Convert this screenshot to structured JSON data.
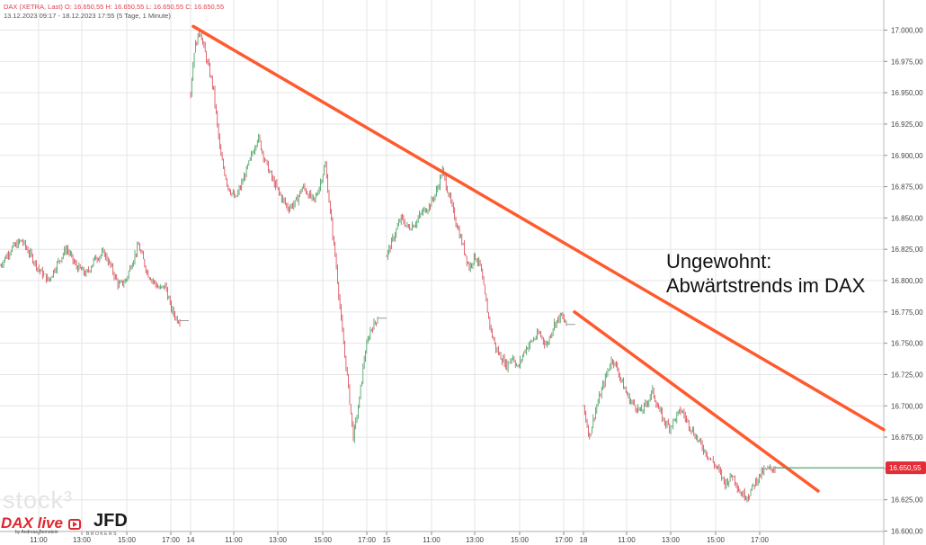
{
  "header": {
    "line1": "DAX (XETRA, Last)  O: 16.650,55  H: 16.650,55  L: 16.650,55  C: 16.650,55",
    "line2": "13.12.2023 09:17 - 18.12.2023 17:55   (5 Tage, 1 Minute)"
  },
  "annotation": {
    "line1": "Ungewohnt:",
    "line2": "Abwärtstrends im DAX"
  },
  "logos": {
    "stock": "stock³",
    "dax_live": "DAX live",
    "dax_live_sub": "by Andreas Bernstein",
    "jfd": "JFD",
    "jfd_sub": "BROKERS"
  },
  "chart_data": {
    "type": "line",
    "title": "DAX (XETRA, Last)",
    "ylim": [
      16600,
      17020
    ],
    "y_ticks": [
      "17.000,00",
      "16.975,00",
      "16.950,00",
      "16.925,00",
      "16.900,00",
      "16.875,00",
      "16.850,00",
      "16.825,00",
      "16.800,00",
      "16.775,00",
      "16.750,00",
      "16.725,00",
      "16.700,00",
      "16.675,00",
      "16.650,00",
      "16.625,00",
      "16.600,00"
    ],
    "last_price": "16.650,55",
    "x_ticks": [
      "11:00",
      "13:00",
      "15:00",
      "17:00",
      "14",
      "11:00",
      "13:00",
      "15:00",
      "17:00",
      "15",
      "11:00",
      "13:00",
      "15:00",
      "17:00",
      "18",
      "11:00",
      "13:00",
      "15:00",
      "17:00"
    ],
    "sessions": [
      {
        "day": "13.12.2023",
        "points": [
          [
            0,
            16812
          ],
          [
            0.06,
            16825
          ],
          [
            0.12,
            16832
          ],
          [
            0.18,
            16818
          ],
          [
            0.22,
            16808
          ],
          [
            0.27,
            16800
          ],
          [
            0.32,
            16814
          ],
          [
            0.37,
            16826
          ],
          [
            0.42,
            16812
          ],
          [
            0.48,
            16805
          ],
          [
            0.53,
            16818
          ],
          [
            0.58,
            16822
          ],
          [
            0.62,
            16810
          ],
          [
            0.66,
            16796
          ],
          [
            0.7,
            16800
          ],
          [
            0.73,
            16813
          ],
          [
            0.77,
            16828
          ],
          [
            0.82,
            16806
          ],
          [
            0.86,
            16798
          ],
          [
            0.89,
            16793
          ],
          [
            0.92,
            16796
          ],
          [
            0.95,
            16778
          ],
          [
            0.98,
            16770
          ],
          [
            1,
            16768
          ]
        ]
      },
      {
        "day": "14.12.2023",
        "points": [
          [
            0,
            16950
          ],
          [
            0.02,
            16985
          ],
          [
            0.05,
            17000
          ],
          [
            0.08,
            16980
          ],
          [
            0.12,
            16955
          ],
          [
            0.16,
            16900
          ],
          [
            0.2,
            16875
          ],
          [
            0.24,
            16865
          ],
          [
            0.28,
            16880
          ],
          [
            0.32,
            16897
          ],
          [
            0.36,
            16915
          ],
          [
            0.4,
            16895
          ],
          [
            0.44,
            16880
          ],
          [
            0.48,
            16868
          ],
          [
            0.52,
            16858
          ],
          [
            0.56,
            16862
          ],
          [
            0.6,
            16875
          ],
          [
            0.63,
            16869
          ],
          [
            0.66,
            16863
          ],
          [
            0.69,
            16876
          ],
          [
            0.72,
            16893
          ],
          [
            0.75,
            16850
          ],
          [
            0.78,
            16810
          ],
          [
            0.81,
            16760
          ],
          [
            0.84,
            16720
          ],
          [
            0.87,
            16675
          ],
          [
            0.9,
            16702
          ],
          [
            0.93,
            16740
          ],
          [
            0.96,
            16760
          ],
          [
            1,
            16770
          ]
        ]
      },
      {
        "day": "15.12.2023",
        "points": [
          [
            0,
            16820
          ],
          [
            0.04,
            16835
          ],
          [
            0.08,
            16850
          ],
          [
            0.12,
            16842
          ],
          [
            0.16,
            16846
          ],
          [
            0.2,
            16855
          ],
          [
            0.24,
            16860
          ],
          [
            0.28,
            16872
          ],
          [
            0.31,
            16888
          ],
          [
            0.34,
            16872
          ],
          [
            0.37,
            16855
          ],
          [
            0.4,
            16840
          ],
          [
            0.43,
            16825
          ],
          [
            0.46,
            16810
          ],
          [
            0.49,
            16820
          ],
          [
            0.52,
            16812
          ],
          [
            0.55,
            16785
          ],
          [
            0.58,
            16760
          ],
          [
            0.61,
            16745
          ],
          [
            0.64,
            16738
          ],
          [
            0.67,
            16732
          ],
          [
            0.7,
            16740
          ],
          [
            0.73,
            16730
          ],
          [
            0.77,
            16745
          ],
          [
            0.81,
            16752
          ],
          [
            0.85,
            16758
          ],
          [
            0.89,
            16748
          ],
          [
            0.93,
            16765
          ],
          [
            0.97,
            16772
          ],
          [
            1,
            16765
          ]
        ]
      },
      {
        "day": "18.12.2023",
        "points": [
          [
            0,
            16700
          ],
          [
            0.03,
            16675
          ],
          [
            0.06,
            16695
          ],
          [
            0.09,
            16710
          ],
          [
            0.12,
            16725
          ],
          [
            0.15,
            16738
          ],
          [
            0.18,
            16728
          ],
          [
            0.21,
            16715
          ],
          [
            0.24,
            16705
          ],
          [
            0.27,
            16700
          ],
          [
            0.3,
            16695
          ],
          [
            0.33,
            16702
          ],
          [
            0.36,
            16712
          ],
          [
            0.39,
            16698
          ],
          [
            0.42,
            16688
          ],
          [
            0.45,
            16683
          ],
          [
            0.48,
            16690
          ],
          [
            0.51,
            16697
          ],
          [
            0.54,
            16688
          ],
          [
            0.57,
            16680
          ],
          [
            0.6,
            16672
          ],
          [
            0.63,
            16665
          ],
          [
            0.66,
            16658
          ],
          [
            0.7,
            16650
          ],
          [
            0.74,
            16638
          ],
          [
            0.78,
            16645
          ],
          [
            0.82,
            16630
          ],
          [
            0.86,
            16628
          ],
          [
            0.9,
            16640
          ],
          [
            0.94,
            16648
          ],
          [
            1,
            16650.55
          ]
        ]
      }
    ],
    "trendlines": [
      {
        "from": [
          0,
          17003
        ],
        "to": [
          1,
          16681
        ]
      },
      {
        "from": [
          0,
          16775
        ],
        "to": [
          1,
          16632
        ]
      }
    ],
    "colors": {
      "trendline": "#ff5a2e",
      "up": "#3d9b5a",
      "down": "#d6424e",
      "grid": "#e6e6e6",
      "price_badge": "#e32c36",
      "axis_text": "#444444"
    }
  }
}
